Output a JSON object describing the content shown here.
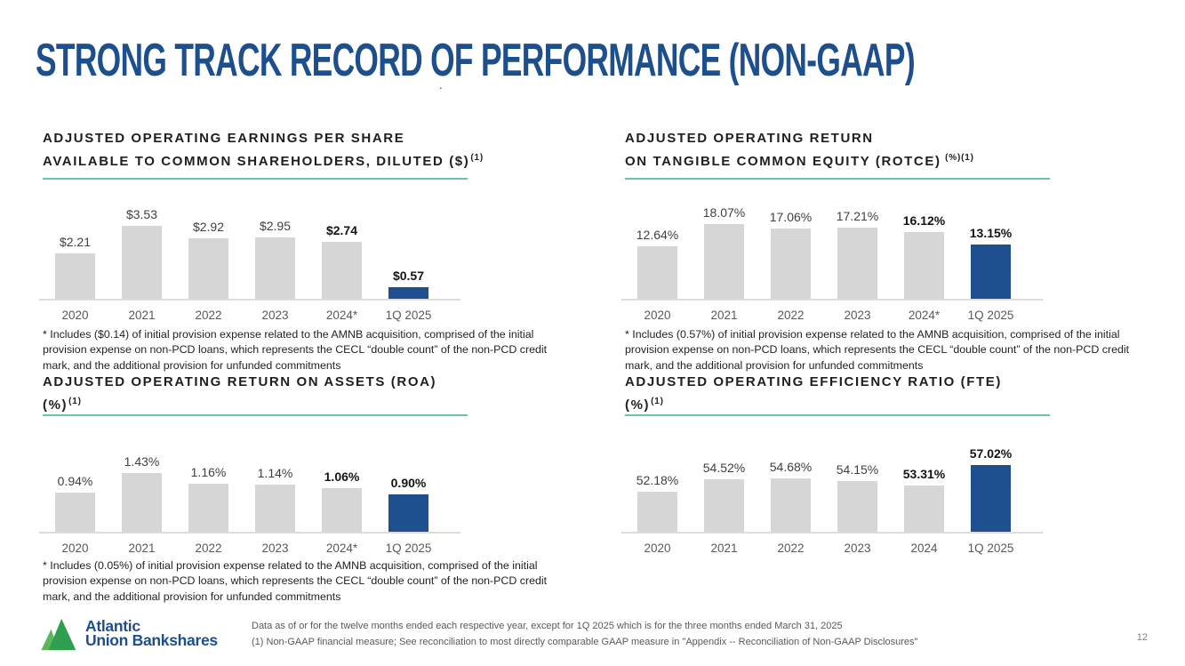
{
  "colors": {
    "brand_blue": "#1d4f8d",
    "bar_blue": "#1e4f8f",
    "bar_gray": "#d6d6d6",
    "rule_teal": "#6cc3a0",
    "axis_gray": "#dcdcdc"
  },
  "header": {
    "title": "STRONG TRACK RECORD OF PERFORMANCE (NON-GAAP)",
    "stray_mark": "."
  },
  "chart_data": [
    {
      "id": "eps",
      "type": "bar",
      "title_line1": "ADJUSTED OPERATING EARNINGS PER SHARE",
      "title_line2": "AVAILABLE TO COMMON SHAREHOLDERS, DILUTED ($)",
      "title_sup": "(1)",
      "categories": [
        "2020",
        "2021",
        "2022",
        "2023",
        "2024*",
        "1Q 2025"
      ],
      "values": [
        2.21,
        3.53,
        2.92,
        2.95,
        2.74,
        0.57
      ],
      "labels": [
        "$2.21",
        "$3.53",
        "$2.92",
        "$2.95",
        "$2.74",
        "$0.57"
      ],
      "bold_from": 4,
      "highlight_index": 5,
      "ylim": [
        0,
        4
      ],
      "grid": false,
      "legend": false,
      "footnote": "*  Includes ($0.14) of initial provision expense related to the AMNB acquisition, comprised of the initial provision expense on non-PCD loans, which represents the CECL “double count” of the non-PCD credit mark, and the additional provision for unfunded commitments"
    },
    {
      "id": "rotce",
      "type": "bar",
      "title_line1": "ADJUSTED OPERATING RETURN",
      "title_line2": "ON TANGIBLE COMMON EQUITY (ROTCE)",
      "title_sup": " (%)(1)",
      "categories": [
        "2020",
        "2021",
        "2022",
        "2023",
        "2024*",
        "1Q 2025"
      ],
      "values": [
        12.64,
        18.07,
        17.06,
        17.21,
        16.12,
        13.15
      ],
      "labels": [
        "12.64%",
        "18.07%",
        "17.06%",
        "17.21%",
        "16.12%",
        "13.15%"
      ],
      "bold_from": 4,
      "highlight_index": 5,
      "ylim": [
        0,
        20
      ],
      "grid": false,
      "legend": false,
      "footnote": "*  Includes (0.57%) of initial provision expense related to the AMNB acquisition, comprised of the initial provision expense on non-PCD loans, which represents the CECL “double count” of the non-PCD credit mark, and the additional provision for unfunded commitments"
    },
    {
      "id": "roa",
      "type": "bar",
      "title_line1": "ADJUSTED OPERATING RETURN ON ASSETS (ROA)",
      "title_line2": "(%)",
      "title_sup": "(1)",
      "categories": [
        "2020",
        "2021",
        "2022",
        "2023",
        "2024*",
        "1Q 2025"
      ],
      "values": [
        0.94,
        1.43,
        1.16,
        1.14,
        1.06,
        0.9
      ],
      "labels": [
        "0.94%",
        "1.43%",
        "1.16%",
        "1.14%",
        "1.06%",
        "0.90%"
      ],
      "bold_from": 4,
      "highlight_index": 5,
      "ylim": [
        0,
        2
      ],
      "grid": false,
      "legend": false,
      "footnote": "*  Includes (0.05%) of initial provision expense related to the AMNB acquisition, comprised of the initial provision expense on non-PCD loans, which represents the CECL “double count” of the non-PCD credit mark, and the additional provision for unfunded commitments"
    },
    {
      "id": "efficiency",
      "type": "bar",
      "title_line1": "ADJUSTED OPERATING EFFICIENCY RATIO (FTE)",
      "title_line2": "(%)",
      "title_sup": "(1)",
      "categories": [
        "2020",
        "2021",
        "2022",
        "2023",
        "2024",
        "1Q 2025"
      ],
      "values": [
        52.18,
        54.52,
        54.68,
        54.15,
        53.31,
        57.02
      ],
      "labels": [
        "52.18%",
        "54.52%",
        "54.68%",
        "54.15%",
        "53.31%",
        "57.02%"
      ],
      "bold_from": 4,
      "highlight_index": 5,
      "ylim": [
        45,
        60
      ],
      "grid": false,
      "legend": false,
      "footnote": ""
    }
  ],
  "footer": {
    "logo": {
      "line1": "Atlantic",
      "line2": "Union Bankshares"
    },
    "note1": "Data as of or for the twelve months ended each respective year, except for 1Q 2025 which is for the three months ended March 31, 2025",
    "note2": "(1) Non-GAAP financial measure; See reconciliation to most directly comparable GAAP measure in \"Appendix -- Reconciliation of Non-GAAP Disclosures\"",
    "page_number": "12"
  }
}
